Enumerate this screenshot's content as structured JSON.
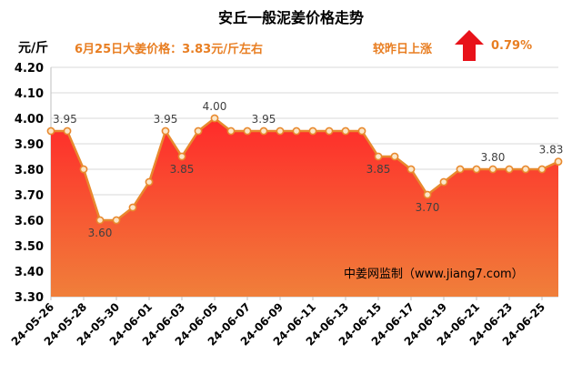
{
  "header": {
    "title": "安丘一般泥姜价格走势",
    "unit": "元/斤",
    "headline": "6月25日大姜价格：3.83元/斤左右",
    "change_label": "较昨日上涨",
    "change_pct": "0.79%",
    "change_icon": "up-arrow-icon",
    "up_color": "#e8121a"
  },
  "chart_data": {
    "type": "area",
    "title": "安丘一般泥姜价格走势",
    "ylabel": "元/斤",
    "ylim": [
      3.3,
      4.2
    ],
    "yticks": [
      "3.30",
      "3.40",
      "3.50",
      "3.60",
      "3.70",
      "3.80",
      "3.90",
      "4.00",
      "4.10",
      "4.20"
    ],
    "xticks": [
      "24-05-26",
      "24-05-28",
      "24-05-30",
      "24-06-01",
      "24-06-03",
      "24-06-05",
      "24-06-07",
      "24-06-09",
      "24-06-11",
      "24-06-13",
      "24-06-15",
      "24-06-17",
      "24-06-19",
      "24-06-21",
      "24-06-23",
      "24-06-25"
    ],
    "grid": true,
    "watermark": "中姜网监制（www.jiang7.com）",
    "series": [
      {
        "values": [
          3.95,
          3.95,
          3.8,
          3.6,
          3.6,
          3.65,
          3.75,
          3.95,
          3.85,
          3.95,
          4.0,
          3.95,
          3.95,
          3.95,
          3.95,
          3.95,
          3.95,
          3.95,
          3.95,
          3.95,
          3.85,
          3.85,
          3.8,
          3.7,
          3.75,
          3.8,
          3.8,
          3.8,
          3.8,
          3.8,
          3.8,
          3.83
        ]
      }
    ],
    "data_labels": [
      {
        "index": 0,
        "text": "3.95"
      },
      {
        "index": 3,
        "text": "3.60"
      },
      {
        "index": 7,
        "text": "3.95"
      },
      {
        "index": 8,
        "text": "3.85"
      },
      {
        "index": 10,
        "text": "4.00"
      },
      {
        "index": 13,
        "text": "3.95"
      },
      {
        "index": 20,
        "text": "3.85"
      },
      {
        "index": 23,
        "text": "3.70"
      },
      {
        "index": 27,
        "text": "3.80"
      },
      {
        "index": 31,
        "text": "3.83"
      }
    ],
    "colors": {
      "line": "#e8892e",
      "marker_fill": "#fbe6c8",
      "area_top": "#ff2a2a",
      "area_bottom": "#f07f3a",
      "label": "#404040"
    }
  }
}
